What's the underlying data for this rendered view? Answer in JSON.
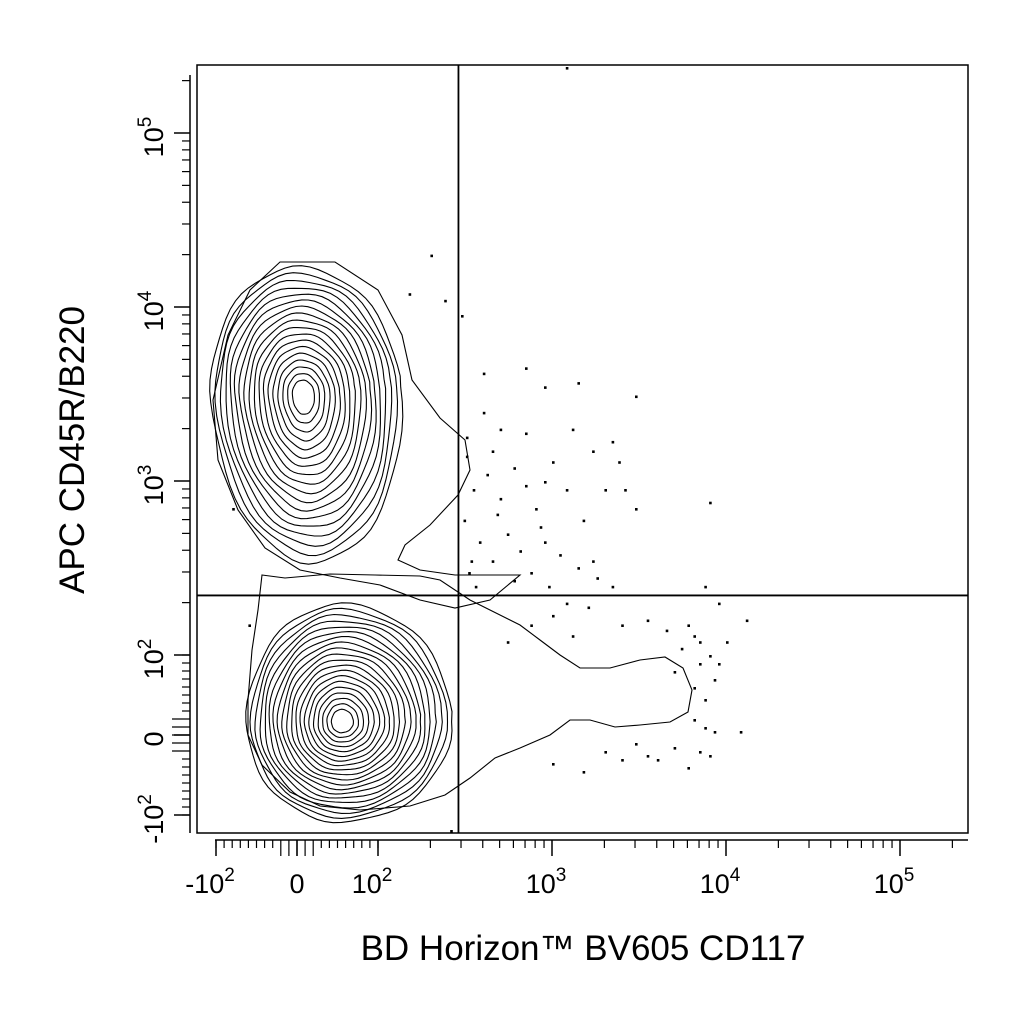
{
  "chart_data": {
    "type": "contour",
    "xlabel": "BD Horizon™  BV605  CD117",
    "ylabel": "APC  CD45R/B220",
    "x_scale": "biexponential",
    "y_scale": "biexponential",
    "xlim": [
      -150,
      250000
    ],
    "ylim": [
      -150,
      250000
    ],
    "x_ticks": [
      {
        "value": -100,
        "base": "-10",
        "exp": "2"
      },
      {
        "value": 0,
        "base": "0",
        "exp": ""
      },
      {
        "value": 100,
        "base": "10",
        "exp": "2"
      },
      {
        "value": 1000,
        "base": "10",
        "exp": "3"
      },
      {
        "value": 10000,
        "base": "10",
        "exp": "4"
      },
      {
        "value": 100000,
        "base": "10",
        "exp": "5"
      }
    ],
    "y_ticks": [
      {
        "value": -100,
        "base": "-10",
        "exp": "2"
      },
      {
        "value": 0,
        "base": "0",
        "exp": ""
      },
      {
        "value": 100,
        "base": "10",
        "exp": "2"
      },
      {
        "value": 1000,
        "base": "10",
        "exp": "3"
      },
      {
        "value": 10000,
        "base": "10",
        "exp": "4"
      },
      {
        "value": 100000,
        "base": "10",
        "exp": "5"
      }
    ],
    "quadrant_gate": {
      "x": 290,
      "y": 220
    },
    "populations": [
      {
        "center": [
          5,
          3000
        ],
        "contour_levels": 18
      },
      {
        "center": [
          60,
          25
        ],
        "contour_levels": 20
      }
    ],
    "outlier_events": [
      [
        310,
        600
      ],
      [
        350,
        900
      ],
      [
        420,
        1100
      ],
      [
        500,
        800
      ],
      [
        600,
        1200
      ],
      [
        700,
        950
      ],
      [
        800,
        700
      ],
      [
        900,
        1000
      ],
      [
        1000,
        1300
      ],
      [
        1200,
        900
      ],
      [
        1500,
        600
      ],
      [
        380,
        450
      ],
      [
        450,
        350
      ],
      [
        550,
        500
      ],
      [
        650,
        400
      ],
      [
        750,
        300
      ],
      [
        900,
        450
      ],
      [
        1100,
        380
      ],
      [
        1400,
        320
      ],
      [
        1800,
        280
      ],
      [
        2200,
        250
      ],
      [
        320,
        1800
      ],
      [
        400,
        2500
      ],
      [
        500,
        2000
      ],
      [
        700,
        4500
      ],
      [
        900,
        3500
      ],
      [
        1300,
        2000
      ],
      [
        1700,
        1500
      ],
      [
        2200,
        1700
      ],
      [
        2600,
        900
      ],
      [
        3000,
        700
      ],
      [
        700,
        1900
      ],
      [
        450,
        1500
      ],
      [
        330,
        300
      ],
      [
        360,
        250
      ],
      [
        600,
        270
      ],
      [
        1200,
        200
      ],
      [
        1600,
        190
      ],
      [
        2500,
        150
      ],
      [
        3500,
        160
      ],
      [
        4500,
        140
      ],
      [
        6000,
        150
      ],
      [
        7000,
        120
      ],
      [
        8000,
        100
      ],
      [
        9000,
        90
      ],
      [
        5000,
        80
      ],
      [
        6500,
        60
      ],
      [
        7500,
        45
      ],
      [
        6500,
        20
      ],
      [
        7500,
        10
      ],
      [
        8500,
        5
      ],
      [
        5000,
        -15
      ],
      [
        3500,
        -25
      ],
      [
        2500,
        -30
      ],
      [
        1500,
        -45
      ],
      [
        1000,
        -35
      ],
      [
        2000,
        -20
      ],
      [
        3000,
        -10
      ],
      [
        4000,
        -30
      ],
      [
        6000,
        -40
      ],
      [
        7000,
        -20
      ],
      [
        8000,
        -25
      ],
      [
        12000,
        5
      ],
      [
        13000,
        160
      ],
      [
        8000,
        760
      ],
      [
        7500,
        250
      ],
      [
        9000,
        200
      ],
      [
        10000,
        120
      ],
      [
        550,
        120
      ],
      [
        750,
        150
      ],
      [
        1000,
        170
      ],
      [
        1300,
        130
      ],
      [
        6500,
        130
      ],
      [
        5500,
        110
      ],
      [
        7000,
        90
      ],
      [
        8500,
        70
      ],
      [
        2000,
        900
      ],
      [
        2400,
        1300
      ],
      [
        320,
        1400
      ],
      [
        340,
        350
      ],
      [
        480,
        650
      ],
      [
        850,
        550
      ],
      [
        950,
        250
      ],
      [
        1700,
        350
      ],
      [
        400,
        4200
      ],
      [
        300,
        9000
      ],
      [
        3000,
        3100
      ],
      [
        1400,
        3700
      ],
      [
        1200,
        245000
      ],
      [
        -60,
        150
      ],
      [
        -80,
        700
      ],
      [
        200,
        20000
      ],
      [
        240,
        11000
      ],
      [
        150,
        12000
      ],
      [
        260,
        -160
      ]
    ]
  }
}
